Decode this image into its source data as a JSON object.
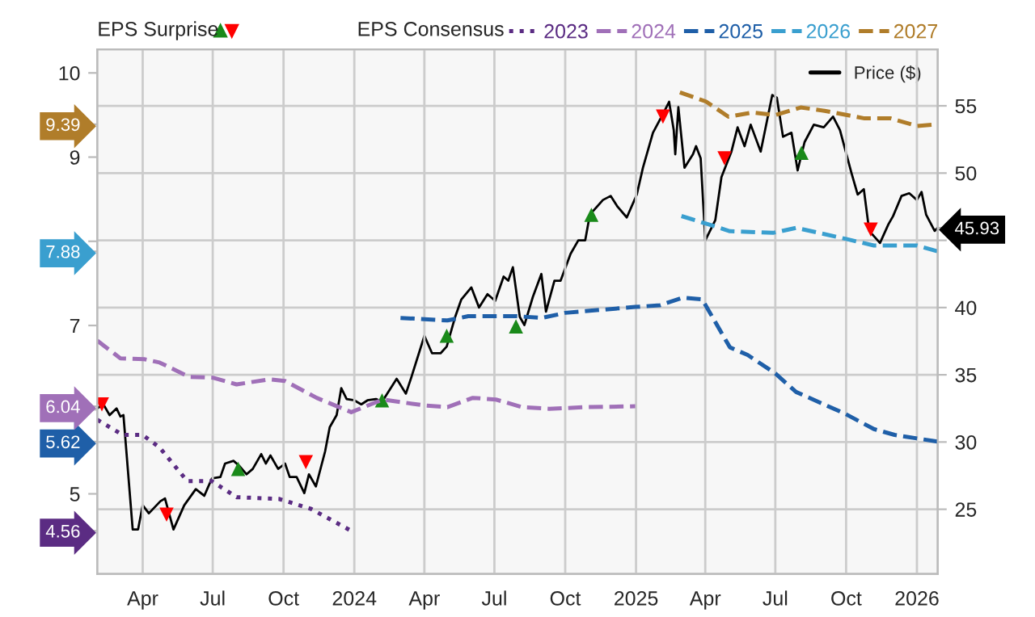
{
  "chart_data": {
    "type": "line",
    "annotations": [
      "EPS Surprise",
      "EPS Consensus"
    ],
    "series": [
      {
        "name": "2023",
        "color": "#5b2c83",
        "line_style": "dotted",
        "x": [
          "2023-02-01",
          "2023-03-06",
          "2023-04-01",
          "2023-04-23",
          "2023-05-29",
          "2023-06-30",
          "2023-08-01",
          "2023-09-25",
          "2023-11-06",
          "2023-12-28"
        ],
        "values": [
          5.88,
          5.7,
          5.7,
          5.55,
          5.15,
          5.15,
          4.96,
          4.94,
          4.82,
          4.56
        ]
      },
      {
        "name": "2024",
        "color": "#a070b8",
        "line_style": "dashed",
        "x": [
          "2023-02-01",
          "2023-03-03",
          "2023-04-03",
          "2023-04-23",
          "2023-05-31",
          "2023-07-01",
          "2023-08-01",
          "2023-09-12",
          "2023-10-03",
          "2023-11-13",
          "2023-12-28",
          "2024-02-07",
          "2024-04-01",
          "2024-05-01",
          "2024-06-03",
          "2024-07-03",
          "2024-08-06",
          "2024-09-10",
          "2024-10-28",
          "2024-12-31"
        ],
        "values": [
          6.82,
          6.61,
          6.6,
          6.56,
          6.39,
          6.38,
          6.3,
          6.36,
          6.34,
          6.14,
          5.97,
          6.12,
          6.05,
          6.03,
          6.14,
          6.12,
          6.03,
          6.01,
          6.03,
          6.04
        ]
      },
      {
        "name": "2025",
        "color": "#1f5fa8",
        "line_style": "dashed",
        "x": [
          "2024-03-01",
          "2024-05-01",
          "2024-05-28",
          "2024-07-30",
          "2024-09-01",
          "2024-10-01",
          "2024-12-31",
          "2025-02-01",
          "2025-03-03",
          "2025-03-28",
          "2025-05-03",
          "2025-05-26",
          "2025-07-01",
          "2025-07-28",
          "2025-09-30",
          "2025-11-06",
          "2025-12-03",
          "2026-01-28"
        ],
        "values": [
          7.09,
          7.06,
          7.11,
          7.11,
          7.09,
          7.15,
          7.22,
          7.24,
          7.33,
          7.31,
          6.74,
          6.65,
          6.43,
          6.21,
          5.95,
          5.77,
          5.7,
          5.62
        ]
      },
      {
        "name": "2026",
        "color": "#3a9fcf",
        "line_style": "dashed",
        "x": [
          "2025-03-01",
          "2025-04-09",
          "2025-05-03",
          "2025-06-28",
          "2025-07-28",
          "2025-09-30",
          "2025-11-06",
          "2026-01-01",
          "2026-01-28"
        ],
        "values": [
          8.3,
          8.19,
          8.12,
          8.1,
          8.16,
          8.03,
          7.95,
          7.95,
          7.88
        ]
      },
      {
        "name": "2027",
        "color": "#b07d2a",
        "line_style": "dashed",
        "x": [
          "2025-02-27",
          "2025-04-02",
          "2025-05-01",
          "2025-06-01",
          "2025-07-01",
          "2025-08-03",
          "2025-09-03",
          "2025-10-25",
          "2025-11-28",
          "2026-01-01",
          "2026-01-28"
        ],
        "values": [
          9.77,
          9.66,
          9.48,
          9.53,
          9.5,
          9.59,
          9.55,
          9.46,
          9.46,
          9.37,
          9.39
        ]
      },
      {
        "name": "Price ($)",
        "color": "#000000",
        "axis": "y2",
        "line_style": "solid",
        "x": [
          "2023-02-01",
          "2023-02-09",
          "2023-02-17",
          "2023-02-26",
          "2023-03-03",
          "2023-03-07",
          "2023-03-19",
          "2023-03-26",
          "2023-04-01",
          "2023-04-09",
          "2023-04-24",
          "2023-04-30",
          "2023-05-11",
          "2023-05-25",
          "2023-06-09",
          "2023-06-20",
          "2023-06-30",
          "2023-07-11",
          "2023-07-17",
          "2023-07-28",
          "2023-08-05",
          "2023-08-14",
          "2023-08-22",
          "2023-09-02",
          "2023-09-08",
          "2023-09-14",
          "2023-09-24",
          "2023-10-03",
          "2023-10-09",
          "2023-10-18",
          "2023-10-28",
          "2023-11-03",
          "2023-11-12",
          "2023-11-24",
          "2023-11-30",
          "2023-12-09",
          "2023-12-15",
          "2023-12-22",
          "2024-01-01",
          "2024-01-10",
          "2024-01-18",
          "2024-01-29",
          "2024-02-06",
          "2024-02-16",
          "2024-02-25",
          "2024-03-08",
          "2024-03-15",
          "2024-04-01",
          "2024-04-11",
          "2024-04-22",
          "2024-04-30",
          "2024-05-11",
          "2024-05-19",
          "2024-06-01",
          "2024-06-11",
          "2024-06-22",
          "2024-07-02",
          "2024-07-13",
          "2024-07-19",
          "2024-07-25",
          "2024-08-03",
          "2024-08-09",
          "2024-08-20",
          "2024-08-31",
          "2024-09-06",
          "2024-09-17",
          "2024-09-25",
          "2024-10-08",
          "2024-10-18",
          "2024-10-27",
          "2024-11-02",
          "2024-11-19",
          "2024-11-29",
          "2024-12-08",
          "2024-12-20",
          "2025-01-02",
          "2025-01-10",
          "2025-01-23",
          "2025-02-05",
          "2025-02-13",
          "2025-02-19",
          "2025-02-21",
          "2025-02-25",
          "2025-03-05",
          "2025-03-16",
          "2025-03-20",
          "2025-03-26",
          "2025-04-01",
          "2025-04-14",
          "2025-04-22",
          "2025-05-05",
          "2025-05-13",
          "2025-05-22",
          "2025-05-30",
          "2025-06-12",
          "2025-06-27",
          "2025-07-03",
          "2025-07-11",
          "2025-07-22",
          "2025-07-30",
          "2025-08-08",
          "2025-08-20",
          "2025-09-02",
          "2025-09-14",
          "2025-09-23",
          "2025-10-08",
          "2025-10-16",
          "2025-10-24",
          "2025-10-31",
          "2025-11-14",
          "2025-11-25",
          "2025-12-01",
          "2025-12-12",
          "2025-12-22",
          "2026-01-01",
          "2026-01-07",
          "2026-01-13",
          "2026-01-24",
          "2026-01-28"
        ],
        "values": [
          32.5,
          32.8,
          32.0,
          32.5,
          31.9,
          32.0,
          23.5,
          23.5,
          25.3,
          24.7,
          25.6,
          25.8,
          23.5,
          25.3,
          26.5,
          26.0,
          27.3,
          27.4,
          28.4,
          28.6,
          28.2,
          27.6,
          28.0,
          29.1,
          28.4,
          29.0,
          28.0,
          28.4,
          27.4,
          27.4,
          26.2,
          27.6,
          26.7,
          29.3,
          31.1,
          32.0,
          34.0,
          33.2,
          33.1,
          32.8,
          33.1,
          33.2,
          33.0,
          33.9,
          34.7,
          33.6,
          34.8,
          37.9,
          36.6,
          36.6,
          37.1,
          39.3,
          40.6,
          41.5,
          40.0,
          41.0,
          40.5,
          42.3,
          42.0,
          43.0,
          39.3,
          38.7,
          40.8,
          42.5,
          39.7,
          42.0,
          42.0,
          44.0,
          45.0,
          45.0,
          46.9,
          48.0,
          48.3,
          47.5,
          46.7,
          48.4,
          50.4,
          53.0,
          54.4,
          55.3,
          53.2,
          51.4,
          54.9,
          50.4,
          51.4,
          52.0,
          51.1,
          45.0,
          46.5,
          49.7,
          51.6,
          53.4,
          52.0,
          53.6,
          51.6,
          55.8,
          55.6,
          52.7,
          53.0,
          50.2,
          52.3,
          53.6,
          53.4,
          54.2,
          53.2,
          50.0,
          48.4,
          48.8,
          45.7,
          44.8,
          46.2,
          46.8,
          48.3,
          48.5,
          48.0,
          48.6,
          46.9,
          45.7,
          45.93
        ]
      },
      {
        "type": "scatter",
        "color": "#1a8a1a",
        "axis": "y2",
        "marker": "triangle",
        "x": [
          "2023-08-03",
          "2024-02-06",
          "2024-04-30",
          "2024-07-29",
          "2024-11-04",
          "2025-08-04"
        ],
        "values": [
          28.0,
          33.1,
          37.9,
          38.6,
          46.9,
          51.5
        ]
      },
      {
        "type": "scatter",
        "color": "#ff0000",
        "axis": "y2",
        "marker": "triangle_down",
        "x": [
          "2023-02-07",
          "2023-05-02",
          "2023-10-30",
          "2025-02-05",
          "2025-04-26",
          "2025-11-02"
        ],
        "values": [
          32.8,
          24.6,
          28.5,
          54.2,
          51.1,
          45.8
        ]
      }
    ],
    "xlim": [
      "2023-02-01",
      "2026-01-28"
    ],
    "xticks": [
      {
        "value": "2023-04-01",
        "label": "Apr"
      },
      {
        "value": "2023-07-01",
        "label": "Jul"
      },
      {
        "value": "2023-10-01",
        "label": "Oct"
      },
      {
        "value": "2024-01-01",
        "label": "2024"
      },
      {
        "value": "2024-04-01",
        "label": "Apr"
      },
      {
        "value": "2024-07-01",
        "label": "Jul"
      },
      {
        "value": "2024-10-01",
        "label": "Oct"
      },
      {
        "value": "2025-01-01",
        "label": "2025"
      },
      {
        "value": "2025-04-01",
        "label": "Apr"
      },
      {
        "value": "2025-07-01",
        "label": "Jul"
      },
      {
        "value": "2025-10-01",
        "label": "Oct"
      },
      {
        "value": "2026-01-01",
        "label": "2026"
      }
    ],
    "ylim": [
      4.05,
      10.28
    ],
    "yticks": [
      {
        "value": 4.56,
        "label": "4.56"
      },
      5,
      {
        "value": 5.62,
        "label": "5.62"
      },
      {
        "value": 6,
        "label": null
      },
      {
        "value": 6.04,
        "label": "6.04"
      },
      7,
      {
        "value": 7.88,
        "label": "7.88"
      },
      {
        "value": 8,
        "label": null
      },
      9,
      {
        "value": 9.39,
        "label": "9.39"
      },
      10
    ],
    "y2lim": [
      20.2,
      59.2
    ],
    "y2ticks": [
      25,
      30,
      35,
      40,
      {
        "value": 45,
        "label": null
      },
      {
        "value": 45.93,
        "label": "45.93"
      },
      50,
      55
    ],
    "grid": true,
    "legend": "top"
  }
}
